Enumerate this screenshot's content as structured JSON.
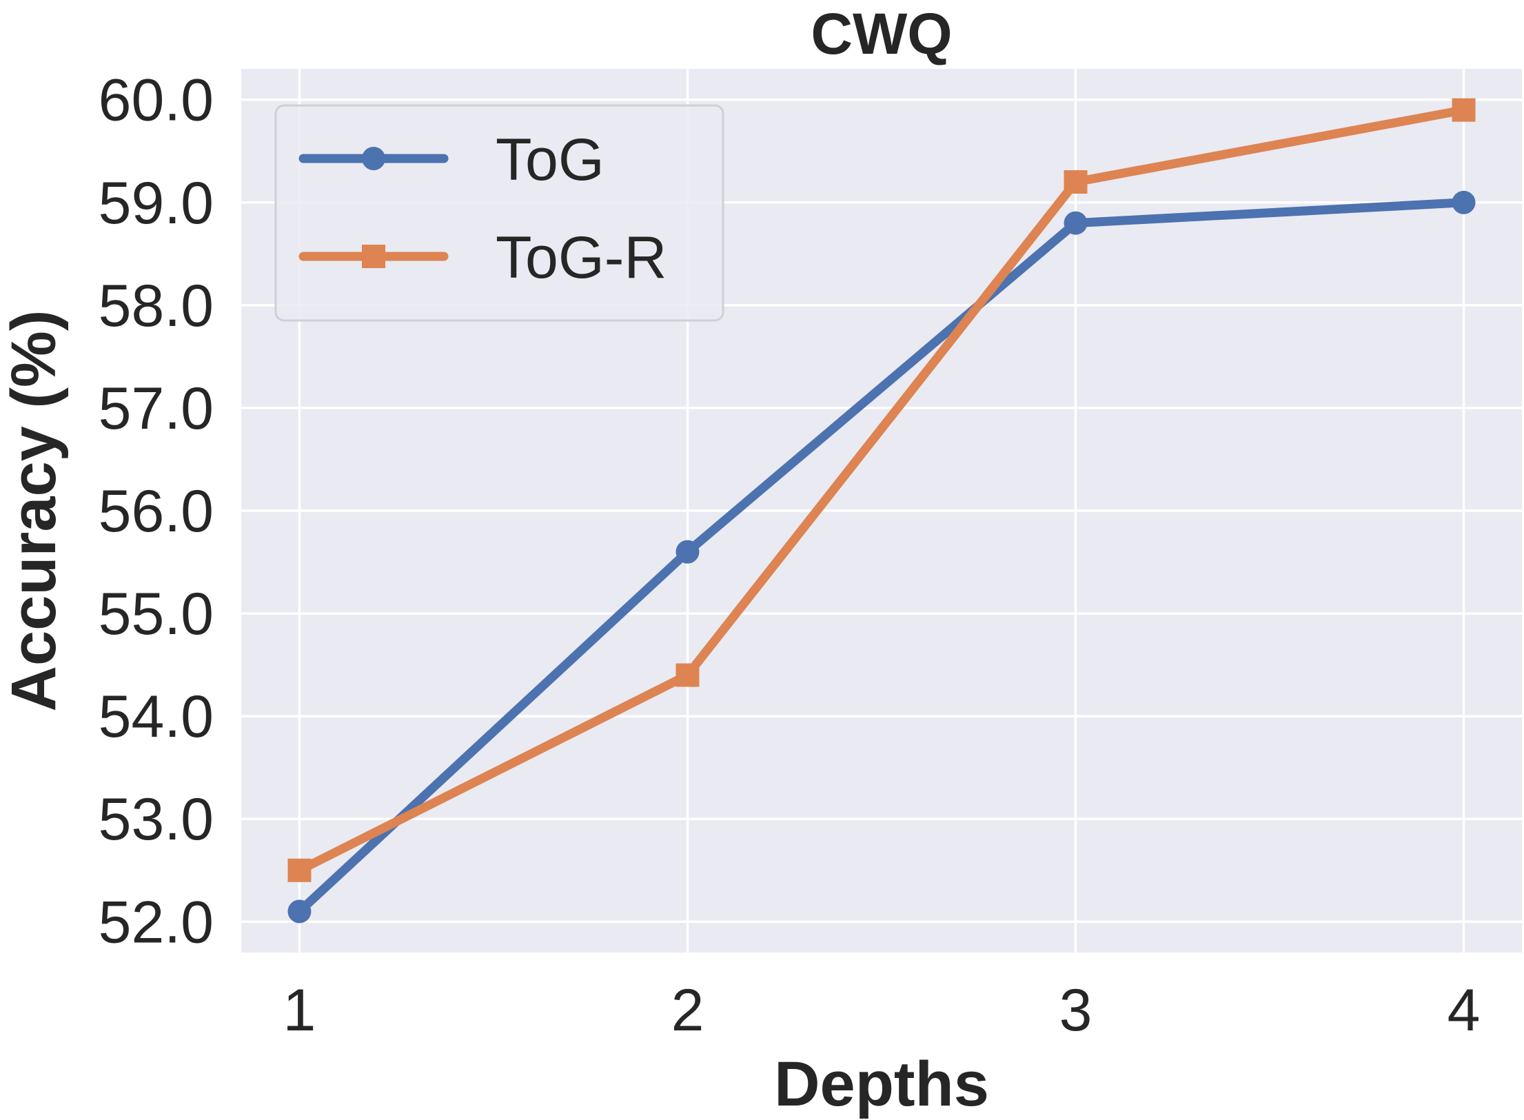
{
  "chart_data": {
    "type": "line",
    "title": "CWQ",
    "xlabel": "Depths",
    "ylabel": "Accuracy (%)",
    "x": [
      1,
      2,
      3,
      4
    ],
    "x_tick_labels": [
      "1",
      "2",
      "3",
      "4"
    ],
    "xlim": [
      0.85,
      4.15
    ],
    "ylim": [
      51.7,
      60.3
    ],
    "y_ticks": [
      52,
      53,
      54,
      55,
      56,
      57,
      58,
      59,
      60
    ],
    "y_tick_labels": [
      "52.0",
      "53.0",
      "54.0",
      "55.0",
      "56.0",
      "57.0",
      "58.0",
      "59.0",
      "60.0"
    ],
    "grid": true,
    "legend_position": "top-left",
    "series": [
      {
        "name": "ToG",
        "marker": "circle",
        "color": "#4c72b0",
        "values": [
          52.1,
          55.6,
          58.8,
          59.0
        ]
      },
      {
        "name": "ToG-R",
        "marker": "square",
        "color": "#dd8452",
        "values": [
          52.5,
          54.4,
          59.2,
          59.9
        ]
      }
    ],
    "background_color": "#eaeaf2"
  }
}
